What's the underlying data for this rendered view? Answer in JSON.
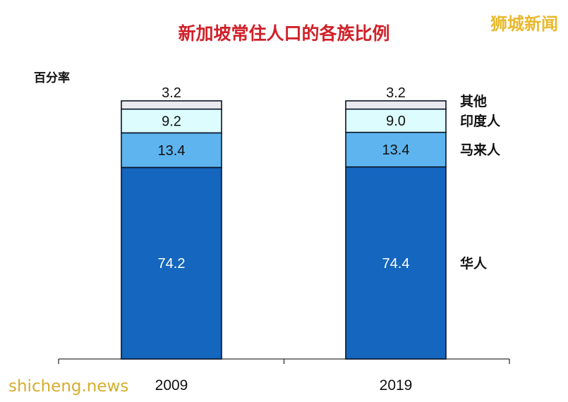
{
  "watermark_top_right": "狮城新闻",
  "watermark_bottom_left": "shicheng.news",
  "chart_data": {
    "type": "bar",
    "stacked": true,
    "title": "新加坡常住人口的各族比例",
    "ylabel": "百分率",
    "xlabel": "",
    "categories": [
      "2009",
      "2019"
    ],
    "ylim": [
      0,
      100
    ],
    "grid": false,
    "legend_position": "right, inline next to stacks",
    "series": [
      {
        "name": "华人",
        "values": [
          74.2,
          74.4
        ],
        "color": "#1466be",
        "label_color": "#ffffff"
      },
      {
        "name": "马来人",
        "values": [
          13.4,
          13.4
        ],
        "color": "#5eb4ee",
        "label_color": "#111111"
      },
      {
        "name": "印度人",
        "values": [
          9.2,
          9.0
        ],
        "color": "#dcfcfd",
        "label_color": "#111111"
      },
      {
        "name": "其他",
        "values": [
          3.2,
          3.2
        ],
        "color": "#e9e9ef",
        "label_color": "#111111"
      }
    ]
  }
}
